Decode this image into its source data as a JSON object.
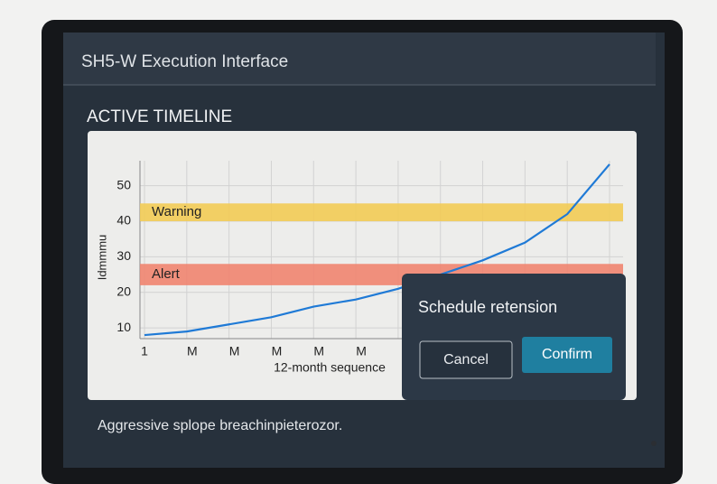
{
  "window": {
    "title": "SH5-W Execution Interface"
  },
  "section_title": "ACTIVE TIMELINE",
  "chart_data": {
    "type": "line",
    "x_label": "12-month sequence",
    "y_label": "Idmmmu",
    "categories": [
      "1",
      "M",
      "M",
      "M",
      "M",
      "M",
      null,
      null,
      null,
      null,
      null,
      null
    ],
    "series": [
      {
        "color": "#1f7ad6",
        "values": [
          8,
          9,
          11,
          13,
          16,
          18,
          21,
          25,
          29,
          34,
          42,
          56
        ]
      }
    ],
    "ylim": [
      7,
      57
    ],
    "yticks": [
      10,
      20,
      30,
      40,
      50
    ],
    "grid": true,
    "bands": [
      {
        "label": "Warning",
        "from": 40,
        "to": 45,
        "color": "#f2cb55"
      },
      {
        "label": "Alert",
        "from": 22,
        "to": 28,
        "color": "#ef8470"
      }
    ]
  },
  "dialog": {
    "title": "Schedule retension",
    "cancel": "Cancel",
    "confirm": "Confirm"
  },
  "footer": "Aggressive splope breachinpieterozor."
}
